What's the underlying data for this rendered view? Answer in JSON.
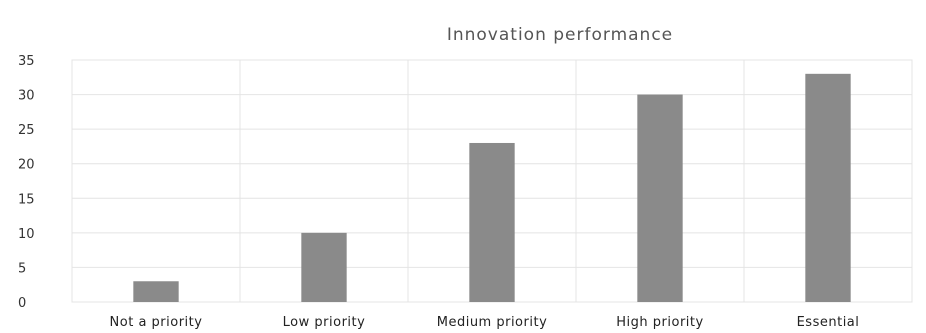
{
  "chart_data": {
    "type": "bar",
    "title": "Innovation performance",
    "categories": [
      "Not a priority",
      "Low priority",
      "Medium priority",
      "High priority",
      "Essential"
    ],
    "values": [
      3,
      10,
      23,
      30,
      33
    ],
    "yticks": [
      0,
      5,
      10,
      15,
      20,
      25,
      30,
      35
    ],
    "ylim": [
      0,
      35
    ],
    "xlabel": "",
    "ylabel": "",
    "grid": true,
    "legend": "none",
    "colors": {
      "bar": "#8a8a8a",
      "grid": "#e4e4e4",
      "background": "#ffffff"
    }
  }
}
